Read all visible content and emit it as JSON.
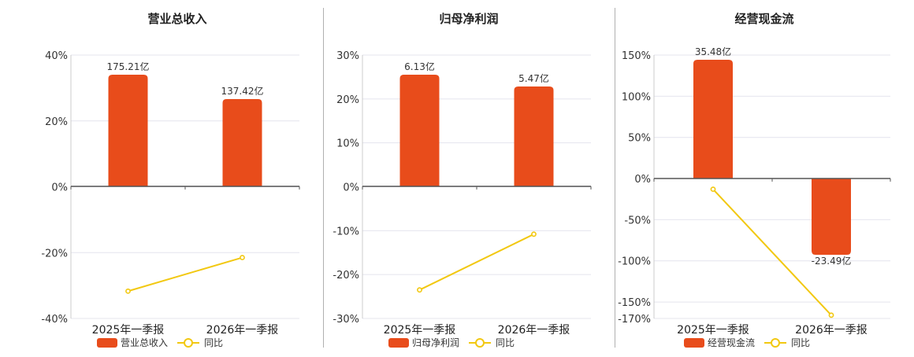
{
  "legend_line_label": "同比",
  "colors": {
    "bar": "#e84c1b",
    "line": "#f2c811",
    "grid": "#e4e4ee",
    "axis": "#555555"
  },
  "chart_data": [
    {
      "type": "bar",
      "title": "营业总收入",
      "categories": [
        "2025年一季报",
        "2026年一季报"
      ],
      "series": [
        {
          "name": "营业总收入",
          "kind": "bar",
          "value_labels": [
            "175.21亿",
            "137.42亿"
          ],
          "values": [
            175.21,
            137.42
          ]
        },
        {
          "name": "同比",
          "kind": "line",
          "values": [
            -31.7,
            -21.5
          ]
        }
      ],
      "y_ticks": [
        "40%",
        "20%",
        "0%",
        "-20%",
        "-40%"
      ],
      "ylim": [
        -40,
        40
      ],
      "grid": true,
      "legend": "bottom"
    },
    {
      "type": "bar",
      "title": "归母净利润",
      "categories": [
        "2025年一季报",
        "2026年一季报"
      ],
      "series": [
        {
          "name": "归母净利润",
          "kind": "bar",
          "value_labels": [
            "6.13亿",
            "5.47亿"
          ],
          "values": [
            6.13,
            5.47
          ]
        },
        {
          "name": "同比",
          "kind": "line",
          "values": [
            -23.5,
            -10.8
          ]
        }
      ],
      "y_ticks": [
        "30%",
        "20%",
        "10%",
        "0%",
        "-10%",
        "-20%",
        "-30%"
      ],
      "ylim": [
        -30,
        30
      ],
      "grid": true,
      "legend": "bottom"
    },
    {
      "type": "bar",
      "title": "经营现金流",
      "categories": [
        "2025年一季报",
        "2026年一季报"
      ],
      "series": [
        {
          "name": "经营现金流",
          "kind": "bar",
          "value_labels": [
            "35.48亿",
            "-23.49亿"
          ],
          "values": [
            35.48,
            -23.49
          ]
        },
        {
          "name": "同比",
          "kind": "line",
          "values": [
            -13,
            -166
          ]
        }
      ],
      "y_ticks": [
        "150%",
        "100%",
        "50%",
        "0%",
        "-50%",
        "-100%",
        "-150%",
        "-170%"
      ],
      "ylim": [
        -170,
        150
      ],
      "grid": true,
      "legend": "bottom"
    }
  ]
}
